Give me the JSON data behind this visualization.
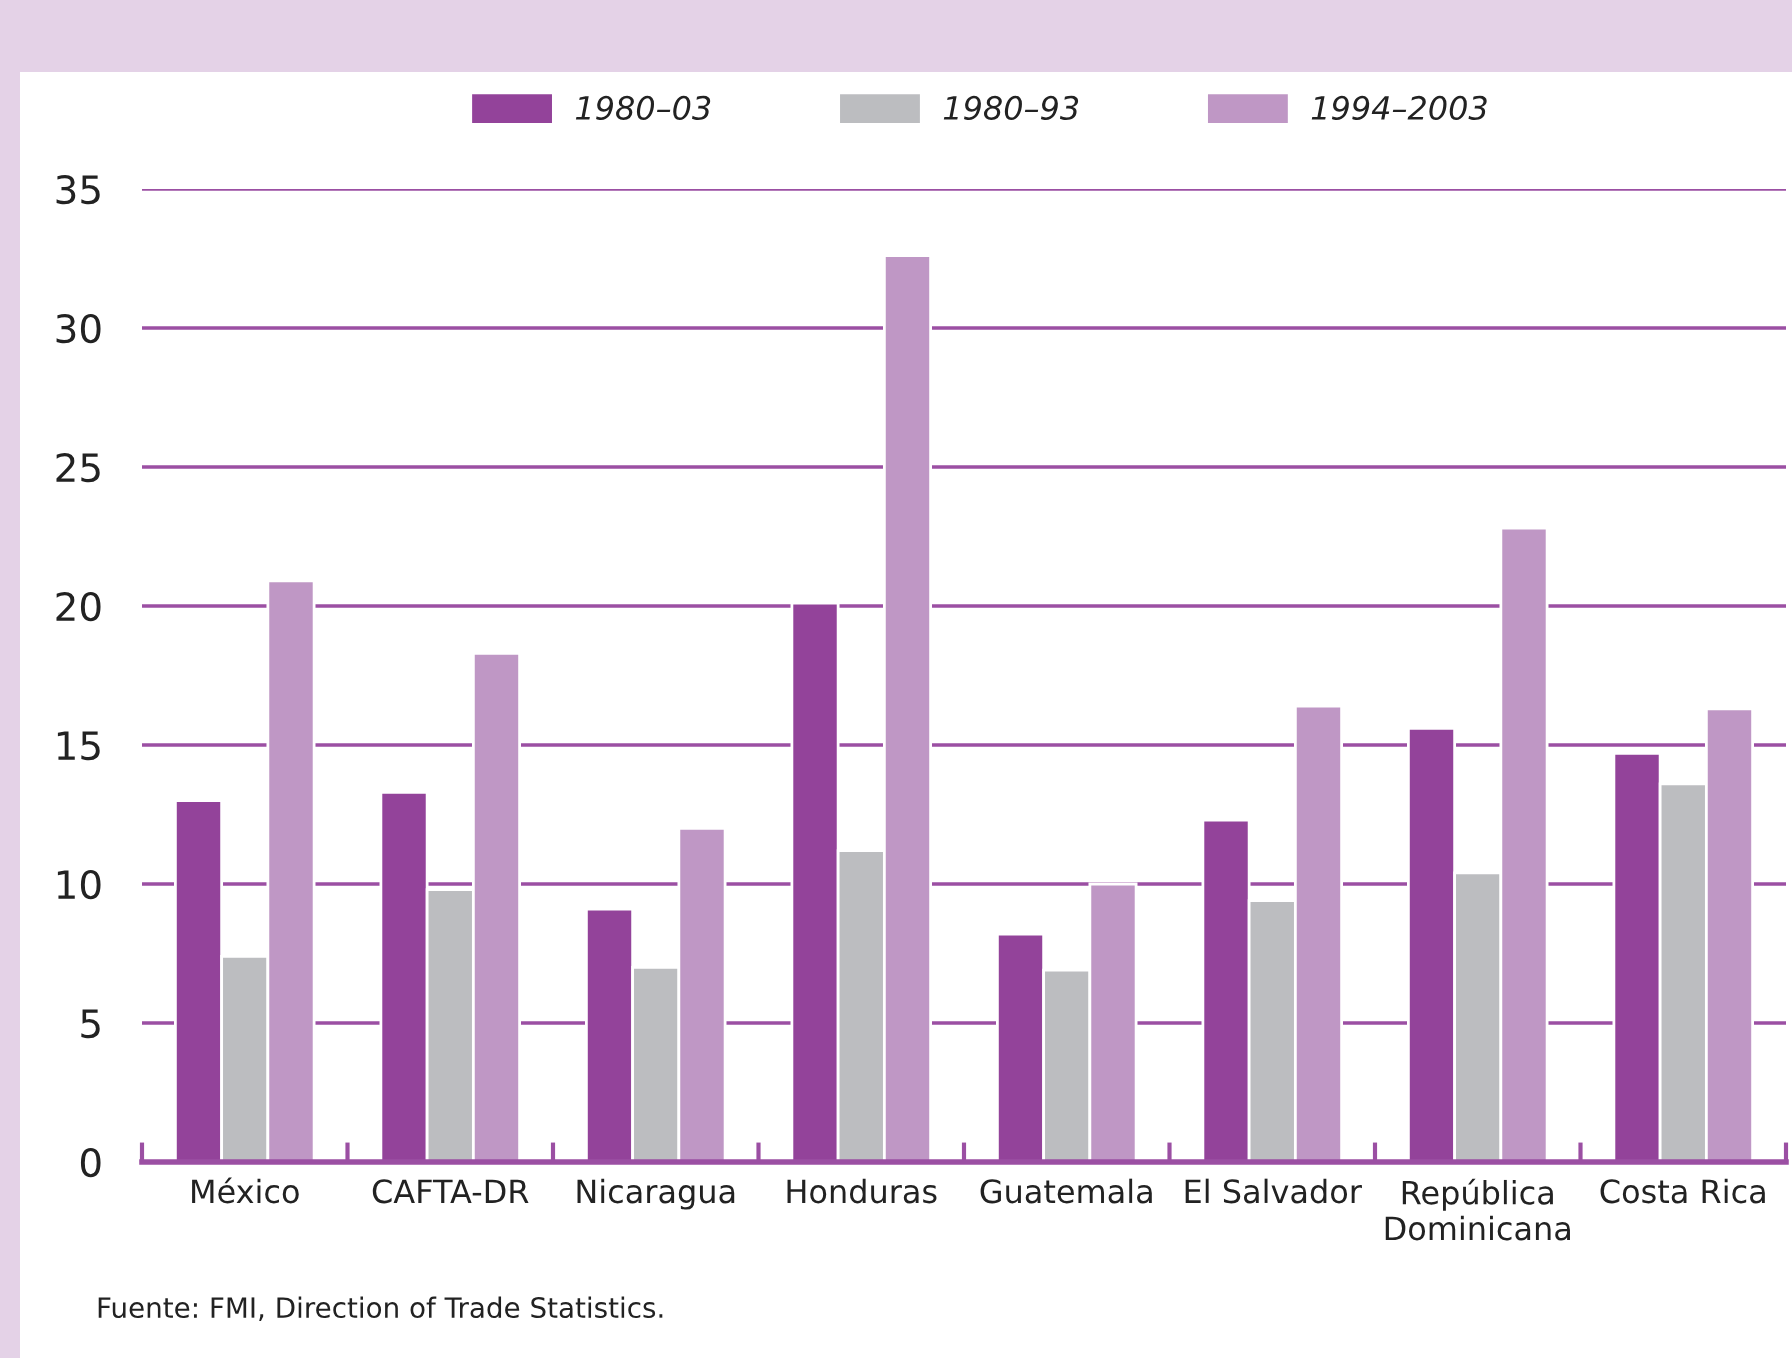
{
  "chart_data": {
    "type": "bar",
    "categories": [
      "México",
      "CAFTA-DR",
      "Nicaragua",
      "Honduras",
      "Guatemala",
      "El Salvador",
      "República Dominicana",
      "Costa Rica"
    ],
    "series": [
      {
        "name": "1980–03",
        "color": "#93439a",
        "values": [
          13.0,
          13.3,
          9.1,
          20.1,
          8.2,
          12.3,
          15.6,
          14.7
        ]
      },
      {
        "name": "1980–93",
        "color": "#bcbdc0",
        "values": [
          7.4,
          9.8,
          7.0,
          11.2,
          6.9,
          9.4,
          10.4,
          13.6
        ]
      },
      {
        "name": "1994–2003",
        "color": "#bf97c5",
        "values": [
          20.9,
          18.3,
          12.0,
          32.6,
          10.0,
          16.4,
          22.8,
          16.3
        ]
      }
    ],
    "ylim": [
      0,
      35
    ],
    "yticks": [
      0,
      5,
      10,
      15,
      20,
      25,
      30,
      35
    ],
    "grid": "y",
    "legend": "top",
    "annotations": [
      "Fuente: FMI, Direction of Trade Statistics."
    ]
  }
}
